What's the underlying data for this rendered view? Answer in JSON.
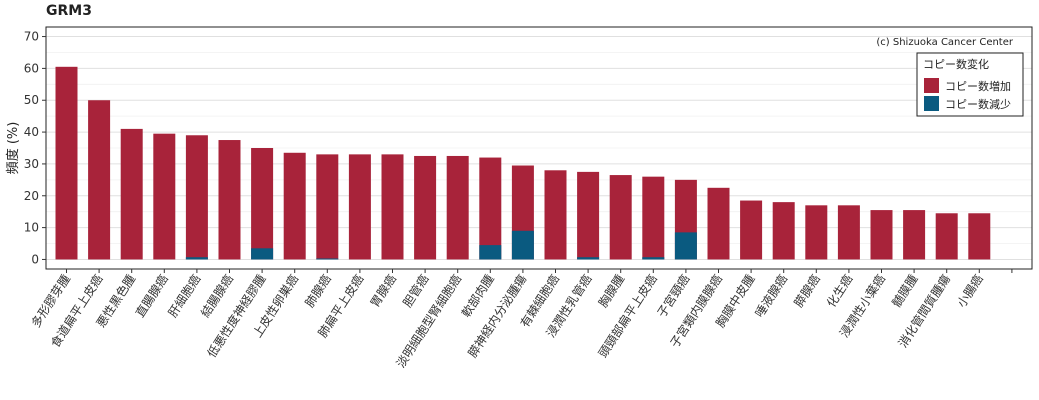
{
  "chart_data": {
    "type": "bar",
    "title": "GRM3",
    "ylabel": "頻度 (%)",
    "xlabel": "",
    "ylim": [
      -3,
      73
    ],
    "yticks": [
      0,
      10,
      20,
      30,
      40,
      50,
      60,
      70
    ],
    "grid": true,
    "stacked": true,
    "copyright": "(c) Shizuoka Cancer Center",
    "legend": {
      "title": "コピー数変化",
      "position": "top-right"
    },
    "categories": [
      "多形膠芽腫",
      "食道扁平上皮癌",
      "悪性黒色腫",
      "直腸腺癌",
      "肝細胞癌",
      "結腸腺癌",
      "低悪性度神経膠腫",
      "上皮性卵巣癌",
      "肺腺癌",
      "肺扁平上皮癌",
      "胃腺癌",
      "胆管癌",
      "淡明細胞型腎細胞癌",
      "軟部肉腫",
      "膵神経内分泌腫瘍",
      "有棘細胞癌",
      "浸潤性乳管癌",
      "胸腺腫",
      "頭頸部扁平上皮癌",
      "子宮頸癌",
      "子宮類内膜腺癌",
      "胸膜中皮腫",
      "唾液腺癌",
      "膵腺癌",
      "化生癌",
      "浸潤性小葉癌",
      "髄膜腫",
      "消化管間質腫瘍",
      "小腸癌"
    ],
    "series": [
      {
        "name": "コピー数増加",
        "color": "#a8233a",
        "values": [
          60.5,
          50,
          41,
          39.5,
          39,
          37.5,
          35,
          33.5,
          33,
          33,
          33,
          32.5,
          32.5,
          32,
          29.5,
          28,
          27.5,
          26.5,
          26,
          25,
          22.5,
          18.5,
          18,
          17,
          17,
          15.5,
          15.5,
          14.5,
          14.5
        ]
      },
      {
        "name": "コピー数減少",
        "color": "#0a5a80",
        "values": [
          0,
          0,
          0,
          0,
          0.7,
          0,
          3.5,
          0,
          0.3,
          0,
          0,
          0,
          0,
          4.5,
          9,
          0,
          0.7,
          0,
          0.7,
          8.5,
          0,
          0,
          0,
          0,
          0,
          0,
          0,
          0,
          0
        ]
      }
    ]
  }
}
